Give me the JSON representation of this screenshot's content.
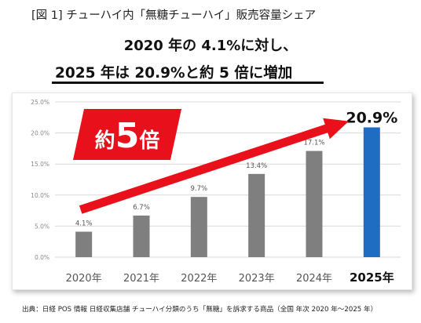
{
  "header": {
    "figure_title": "[図 1]  チューハイ内「無糖チューハイ」販売容量シェア",
    "headline_1": "2020 年の 4.1%に対し、",
    "headline_2": "2025 年は 20.9%と約 5 倍に増加"
  },
  "badge": {
    "text_prefix": "約",
    "text_number": "5",
    "text_suffix": "倍"
  },
  "source": "出典：日経 POS 情報  日経収集店舗  チューハイ分類のうち「無糖」を訴求する商品（全国  年次  2020 年～2025 年）",
  "colors": {
    "bar": "#7f7f7f",
    "highlight_bar": "#1f6dc2",
    "arrow": "#e8101a",
    "badge": "#e8101a",
    "grid": "#d9d9d9"
  },
  "chart_data": {
    "type": "bar",
    "categories": [
      "2020年",
      "2021年",
      "2022年",
      "2023年",
      "2024年",
      "2025年"
    ],
    "values": [
      4.1,
      6.7,
      9.7,
      13.4,
      17.1,
      20.9
    ],
    "data_labels": [
      "4.1%",
      "6.7%",
      "9.7%",
      "13.4%",
      "17.1%",
      "20.9%"
    ],
    "y_ticks": [
      "0.0%",
      "5.0%",
      "10.0%",
      "15.0%",
      "20.0%",
      "25.0%"
    ],
    "ylim": [
      0,
      25
    ],
    "highlight_index": 5,
    "grid": true,
    "title": "",
    "xlabel": "",
    "ylabel": ""
  }
}
